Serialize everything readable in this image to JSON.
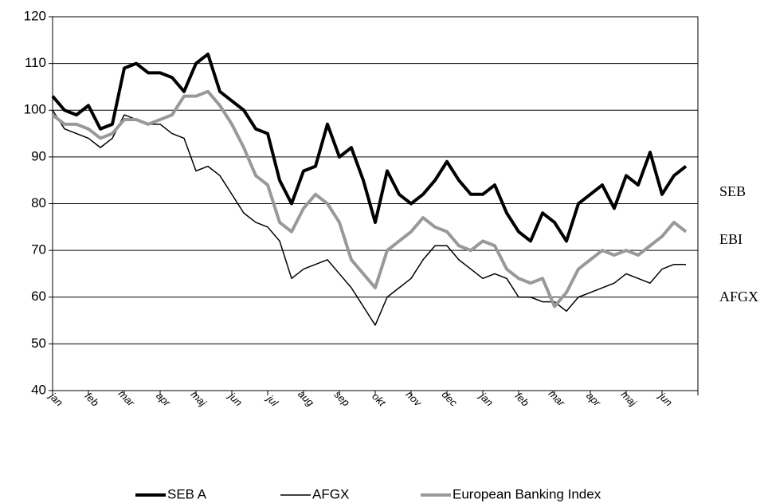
{
  "chart_data": {
    "type": "line",
    "categories": [
      "jan",
      null,
      null,
      "feb",
      null,
      null,
      "mar",
      null,
      null,
      "apr",
      null,
      null,
      "maj",
      null,
      null,
      "jun",
      null,
      null,
      "jul",
      null,
      null,
      "aug",
      null,
      null,
      "sep",
      null,
      null,
      "okt",
      null,
      null,
      "nov",
      null,
      null,
      "dec",
      null,
      null,
      "jan",
      null,
      null,
      "feb",
      null,
      null,
      "mar",
      null,
      null,
      "apr",
      null,
      null,
      "maj",
      null,
      null,
      "jun",
      null,
      null
    ],
    "series": [
      {
        "name": "SEB A",
        "color": "#000000",
        "width": 4,
        "values": [
          103,
          100,
          99,
          101,
          96,
          97,
          109,
          110,
          108,
          108,
          107,
          104,
          110,
          112,
          104,
          102,
          100,
          96,
          95,
          85,
          80,
          87,
          88,
          97,
          90,
          92,
          85,
          76,
          87,
          82,
          80,
          82,
          85,
          89,
          85,
          82,
          82,
          84,
          78,
          74,
          72,
          78,
          76,
          72,
          80,
          82,
          84,
          79,
          86,
          84,
          91,
          82,
          86,
          88
        ]
      },
      {
        "name": "AFGX",
        "color": "#000000",
        "width": 1.5,
        "values": [
          100,
          96,
          95,
          94,
          92,
          94,
          99,
          98,
          97,
          97,
          95,
          94,
          87,
          88,
          86,
          82,
          78,
          76,
          75,
          72,
          64,
          66,
          67,
          68,
          65,
          62,
          58,
          54,
          60,
          62,
          64,
          68,
          71,
          71,
          68,
          66,
          64,
          65,
          64,
          60,
          60,
          59,
          59,
          57,
          60,
          61,
          62,
          63,
          65,
          64,
          63,
          66,
          67,
          67
        ]
      },
      {
        "name": "European Banking Index",
        "color": "#999999",
        "width": 4,
        "values": [
          99,
          97,
          97,
          96,
          94,
          95,
          98,
          98,
          97,
          98,
          99,
          103,
          103,
          104,
          101,
          97,
          92,
          86,
          84,
          76,
          74,
          79,
          82,
          80,
          76,
          68,
          65,
          62,
          70,
          72,
          74,
          77,
          75,
          74,
          71,
          70,
          72,
          71,
          66,
          64,
          63,
          64,
          58,
          61,
          66,
          68,
          70,
          69,
          70,
          69,
          71,
          73,
          76,
          74
        ]
      }
    ],
    "annotations": [
      "SEB",
      "EBI",
      "AFGX"
    ],
    "ylim": [
      40,
      120
    ],
    "yticks": [
      40,
      50,
      60,
      70,
      80,
      90,
      100,
      110,
      120
    ],
    "grid": true,
    "legend": "bottom"
  }
}
